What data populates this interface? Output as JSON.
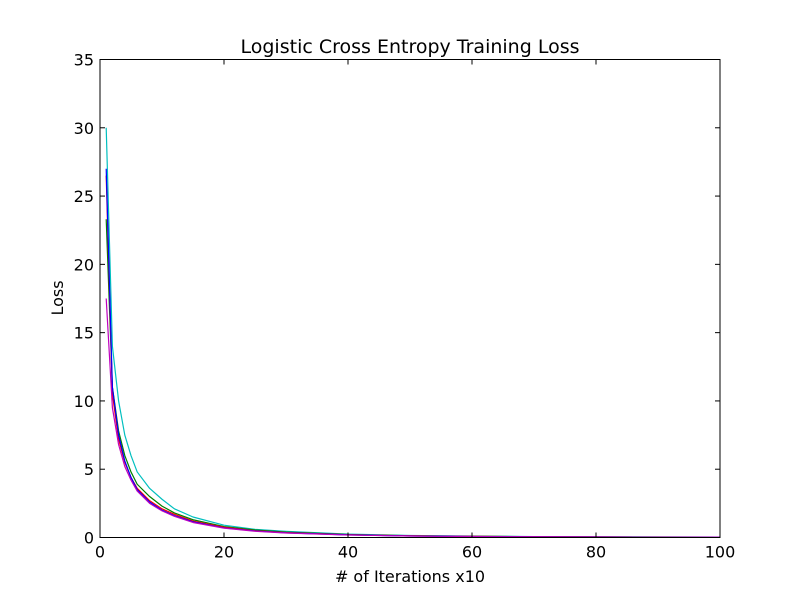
{
  "chart_data": {
    "type": "line",
    "title": "Logistic Cross Entropy Training Loss",
    "xlabel": "# of Iterations x10",
    "ylabel": "Loss",
    "xlim": [
      0,
      100
    ],
    "ylim": [
      0,
      35
    ],
    "xticks": [
      "0",
      "20",
      "40",
      "60",
      "80",
      "100"
    ],
    "yticks": [
      "0",
      "5",
      "10",
      "15",
      "20",
      "25",
      "30",
      "35"
    ],
    "grid": false,
    "legend": "none",
    "x": [
      1,
      2,
      3,
      4,
      5,
      6,
      8,
      10,
      12,
      15,
      20,
      25,
      30,
      40,
      50,
      60,
      70,
      80,
      90,
      100
    ],
    "series": [
      {
        "color": "#00bfbf",
        "values": [
          30.0,
          14.0,
          10.0,
          7.5,
          6.0,
          4.8,
          3.6,
          2.8,
          2.1,
          1.5,
          0.9,
          0.6,
          0.45,
          0.25,
          0.15,
          0.1,
          0.07,
          0.05,
          0.04,
          0.03
        ]
      },
      {
        "color": "#008000",
        "values": [
          23.3,
          11.0,
          7.8,
          6.0,
          4.8,
          3.9,
          3.0,
          2.3,
          1.8,
          1.3,
          0.8,
          0.55,
          0.4,
          0.22,
          0.13,
          0.09,
          0.06,
          0.045,
          0.035,
          0.025
        ]
      },
      {
        "color": "#ff0000",
        "values": [
          26.5,
          10.5,
          7.2,
          5.5,
          4.4,
          3.6,
          2.7,
          2.1,
          1.7,
          1.2,
          0.75,
          0.5,
          0.36,
          0.2,
          0.12,
          0.08,
          0.055,
          0.04,
          0.03,
          0.02
        ]
      },
      {
        "color": "#0000ff",
        "values": [
          27.0,
          11.0,
          7.5,
          5.6,
          4.4,
          3.5,
          2.6,
          2.0,
          1.6,
          1.15,
          0.7,
          0.48,
          0.34,
          0.19,
          0.11,
          0.075,
          0.05,
          0.038,
          0.028,
          0.02
        ]
      },
      {
        "color": "#bf00bf",
        "values": [
          17.5,
          9.5,
          6.8,
          5.2,
          4.2,
          3.4,
          2.5,
          1.95,
          1.55,
          1.1,
          0.68,
          0.46,
          0.33,
          0.18,
          0.11,
          0.07,
          0.05,
          0.036,
          0.027,
          0.02
        ]
      }
    ]
  }
}
